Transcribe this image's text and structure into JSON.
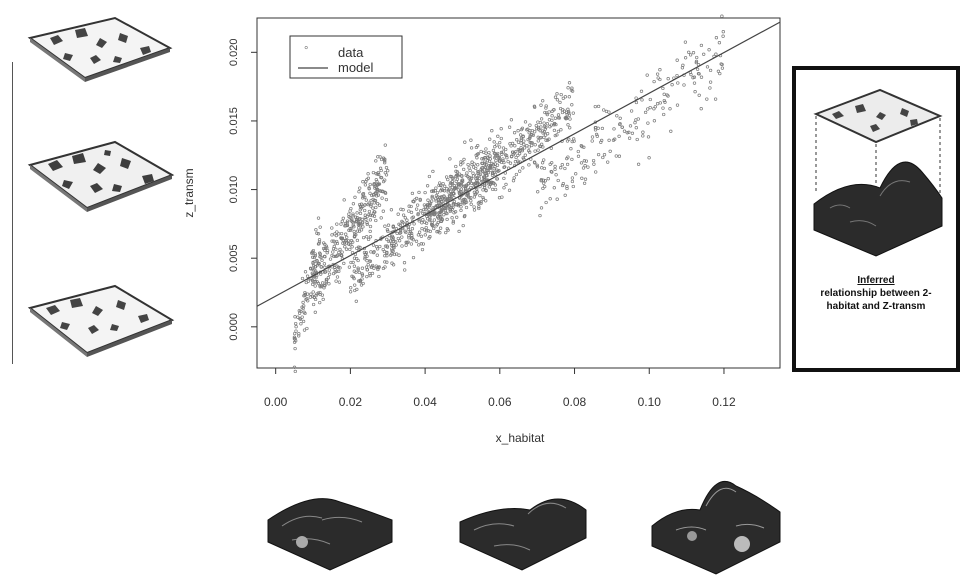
{
  "chart_data": {
    "type": "scatter",
    "xlabel": "x_habitat",
    "ylabel": "z_transm",
    "xlim": [
      -0.005,
      0.135
    ],
    "ylim": [
      -0.003,
      0.0225
    ],
    "xticks": [
      "0.00",
      "0.02",
      "0.04",
      "0.06",
      "0.08",
      "0.10",
      "0.12"
    ],
    "xtick_values": [
      0.0,
      0.02,
      0.04,
      0.06,
      0.08,
      0.1,
      0.12
    ],
    "yticks": [
      "0.000",
      "0.005",
      "0.010",
      "0.015",
      "0.020"
    ],
    "ytick_values": [
      0.0,
      0.005,
      0.01,
      0.015,
      0.02
    ],
    "legend": {
      "position": "top-left",
      "items": [
        "data",
        "model"
      ]
    },
    "series": [
      {
        "name": "data",
        "kind": "points",
        "clusters": [
          {
            "x_range": [
              0.005,
              0.012
            ],
            "y_range": [
              -0.001,
              0.006
            ],
            "count": 90
          },
          {
            "x_range": [
              0.01,
              0.03
            ],
            "y_range": [
              0.003,
              0.011
            ],
            "count": 320
          },
          {
            "x_range": [
              0.02,
              0.06
            ],
            "y_range": [
              0.004,
              0.012
            ],
            "count": 480
          },
          {
            "x_range": [
              0.04,
              0.08
            ],
            "y_range": [
              0.008,
              0.016
            ],
            "count": 420
          },
          {
            "x_range": [
              0.07,
              0.12
            ],
            "y_range": [
              0.01,
              0.02
            ],
            "count": 200
          }
        ]
      },
      {
        "name": "model",
        "kind": "line",
        "points": [
          [
            -0.005,
            0.0015
          ],
          [
            0.135,
            0.0222
          ]
        ]
      }
    ]
  },
  "highlight": {
    "caption_line1": "Inferred",
    "caption_line2": "relationship between 2-",
    "caption_line3": "habitat and Z-transm"
  },
  "colors": {
    "points": "#7a7a7a",
    "line": "#444444",
    "axis": "#333333",
    "terrain_dark": "#2b2b2b"
  }
}
